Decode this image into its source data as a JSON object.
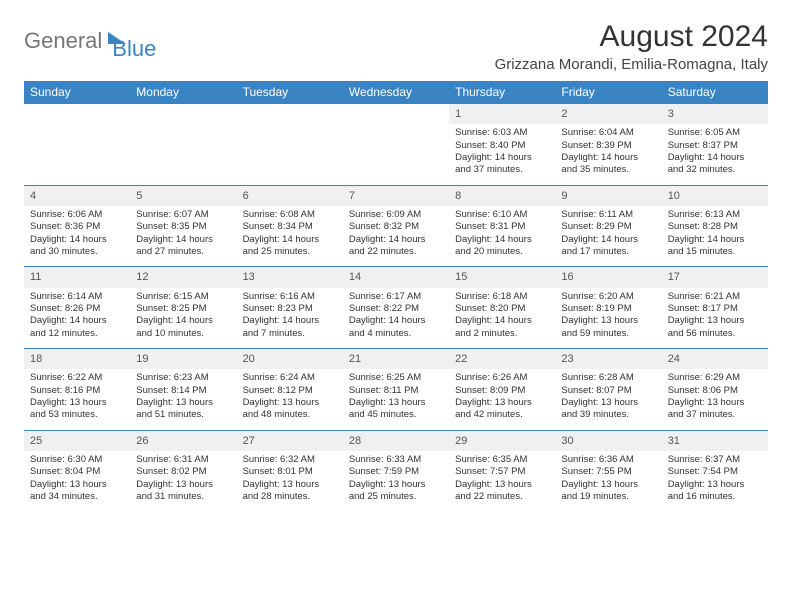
{
  "logo": {
    "part1": "General",
    "part2": "Blue"
  },
  "title": "August 2024",
  "location": "Grizzana Morandi, Emilia-Romagna, Italy",
  "header_color": "#3b84c4",
  "daynum_bg": "#eef0f2",
  "days": [
    "Sunday",
    "Monday",
    "Tuesday",
    "Wednesday",
    "Thursday",
    "Friday",
    "Saturday"
  ],
  "weeks": [
    [
      null,
      null,
      null,
      null,
      {
        "n": "1",
        "sunrise": "6:03 AM",
        "sunset": "8:40 PM",
        "dl": "14 hours and 37 minutes."
      },
      {
        "n": "2",
        "sunrise": "6:04 AM",
        "sunset": "8:39 PM",
        "dl": "14 hours and 35 minutes."
      },
      {
        "n": "3",
        "sunrise": "6:05 AM",
        "sunset": "8:37 PM",
        "dl": "14 hours and 32 minutes."
      }
    ],
    [
      {
        "n": "4",
        "sunrise": "6:06 AM",
        "sunset": "8:36 PM",
        "dl": "14 hours and 30 minutes."
      },
      {
        "n": "5",
        "sunrise": "6:07 AM",
        "sunset": "8:35 PM",
        "dl": "14 hours and 27 minutes."
      },
      {
        "n": "6",
        "sunrise": "6:08 AM",
        "sunset": "8:34 PM",
        "dl": "14 hours and 25 minutes."
      },
      {
        "n": "7",
        "sunrise": "6:09 AM",
        "sunset": "8:32 PM",
        "dl": "14 hours and 22 minutes."
      },
      {
        "n": "8",
        "sunrise": "6:10 AM",
        "sunset": "8:31 PM",
        "dl": "14 hours and 20 minutes."
      },
      {
        "n": "9",
        "sunrise": "6:11 AM",
        "sunset": "8:29 PM",
        "dl": "14 hours and 17 minutes."
      },
      {
        "n": "10",
        "sunrise": "6:13 AM",
        "sunset": "8:28 PM",
        "dl": "14 hours and 15 minutes."
      }
    ],
    [
      {
        "n": "11",
        "sunrise": "6:14 AM",
        "sunset": "8:26 PM",
        "dl": "14 hours and 12 minutes."
      },
      {
        "n": "12",
        "sunrise": "6:15 AM",
        "sunset": "8:25 PM",
        "dl": "14 hours and 10 minutes."
      },
      {
        "n": "13",
        "sunrise": "6:16 AM",
        "sunset": "8:23 PM",
        "dl": "14 hours and 7 minutes."
      },
      {
        "n": "14",
        "sunrise": "6:17 AM",
        "sunset": "8:22 PM",
        "dl": "14 hours and 4 minutes."
      },
      {
        "n": "15",
        "sunrise": "6:18 AM",
        "sunset": "8:20 PM",
        "dl": "14 hours and 2 minutes."
      },
      {
        "n": "16",
        "sunrise": "6:20 AM",
        "sunset": "8:19 PM",
        "dl": "13 hours and 59 minutes."
      },
      {
        "n": "17",
        "sunrise": "6:21 AM",
        "sunset": "8:17 PM",
        "dl": "13 hours and 56 minutes."
      }
    ],
    [
      {
        "n": "18",
        "sunrise": "6:22 AM",
        "sunset": "8:16 PM",
        "dl": "13 hours and 53 minutes."
      },
      {
        "n": "19",
        "sunrise": "6:23 AM",
        "sunset": "8:14 PM",
        "dl": "13 hours and 51 minutes."
      },
      {
        "n": "20",
        "sunrise": "6:24 AM",
        "sunset": "8:12 PM",
        "dl": "13 hours and 48 minutes."
      },
      {
        "n": "21",
        "sunrise": "6:25 AM",
        "sunset": "8:11 PM",
        "dl": "13 hours and 45 minutes."
      },
      {
        "n": "22",
        "sunrise": "6:26 AM",
        "sunset": "8:09 PM",
        "dl": "13 hours and 42 minutes."
      },
      {
        "n": "23",
        "sunrise": "6:28 AM",
        "sunset": "8:07 PM",
        "dl": "13 hours and 39 minutes."
      },
      {
        "n": "24",
        "sunrise": "6:29 AM",
        "sunset": "8:06 PM",
        "dl": "13 hours and 37 minutes."
      }
    ],
    [
      {
        "n": "25",
        "sunrise": "6:30 AM",
        "sunset": "8:04 PM",
        "dl": "13 hours and 34 minutes."
      },
      {
        "n": "26",
        "sunrise": "6:31 AM",
        "sunset": "8:02 PM",
        "dl": "13 hours and 31 minutes."
      },
      {
        "n": "27",
        "sunrise": "6:32 AM",
        "sunset": "8:01 PM",
        "dl": "13 hours and 28 minutes."
      },
      {
        "n": "28",
        "sunrise": "6:33 AM",
        "sunset": "7:59 PM",
        "dl": "13 hours and 25 minutes."
      },
      {
        "n": "29",
        "sunrise": "6:35 AM",
        "sunset": "7:57 PM",
        "dl": "13 hours and 22 minutes."
      },
      {
        "n": "30",
        "sunrise": "6:36 AM",
        "sunset": "7:55 PM",
        "dl": "13 hours and 19 minutes."
      },
      {
        "n": "31",
        "sunrise": "6:37 AM",
        "sunset": "7:54 PM",
        "dl": "13 hours and 16 minutes."
      }
    ]
  ]
}
